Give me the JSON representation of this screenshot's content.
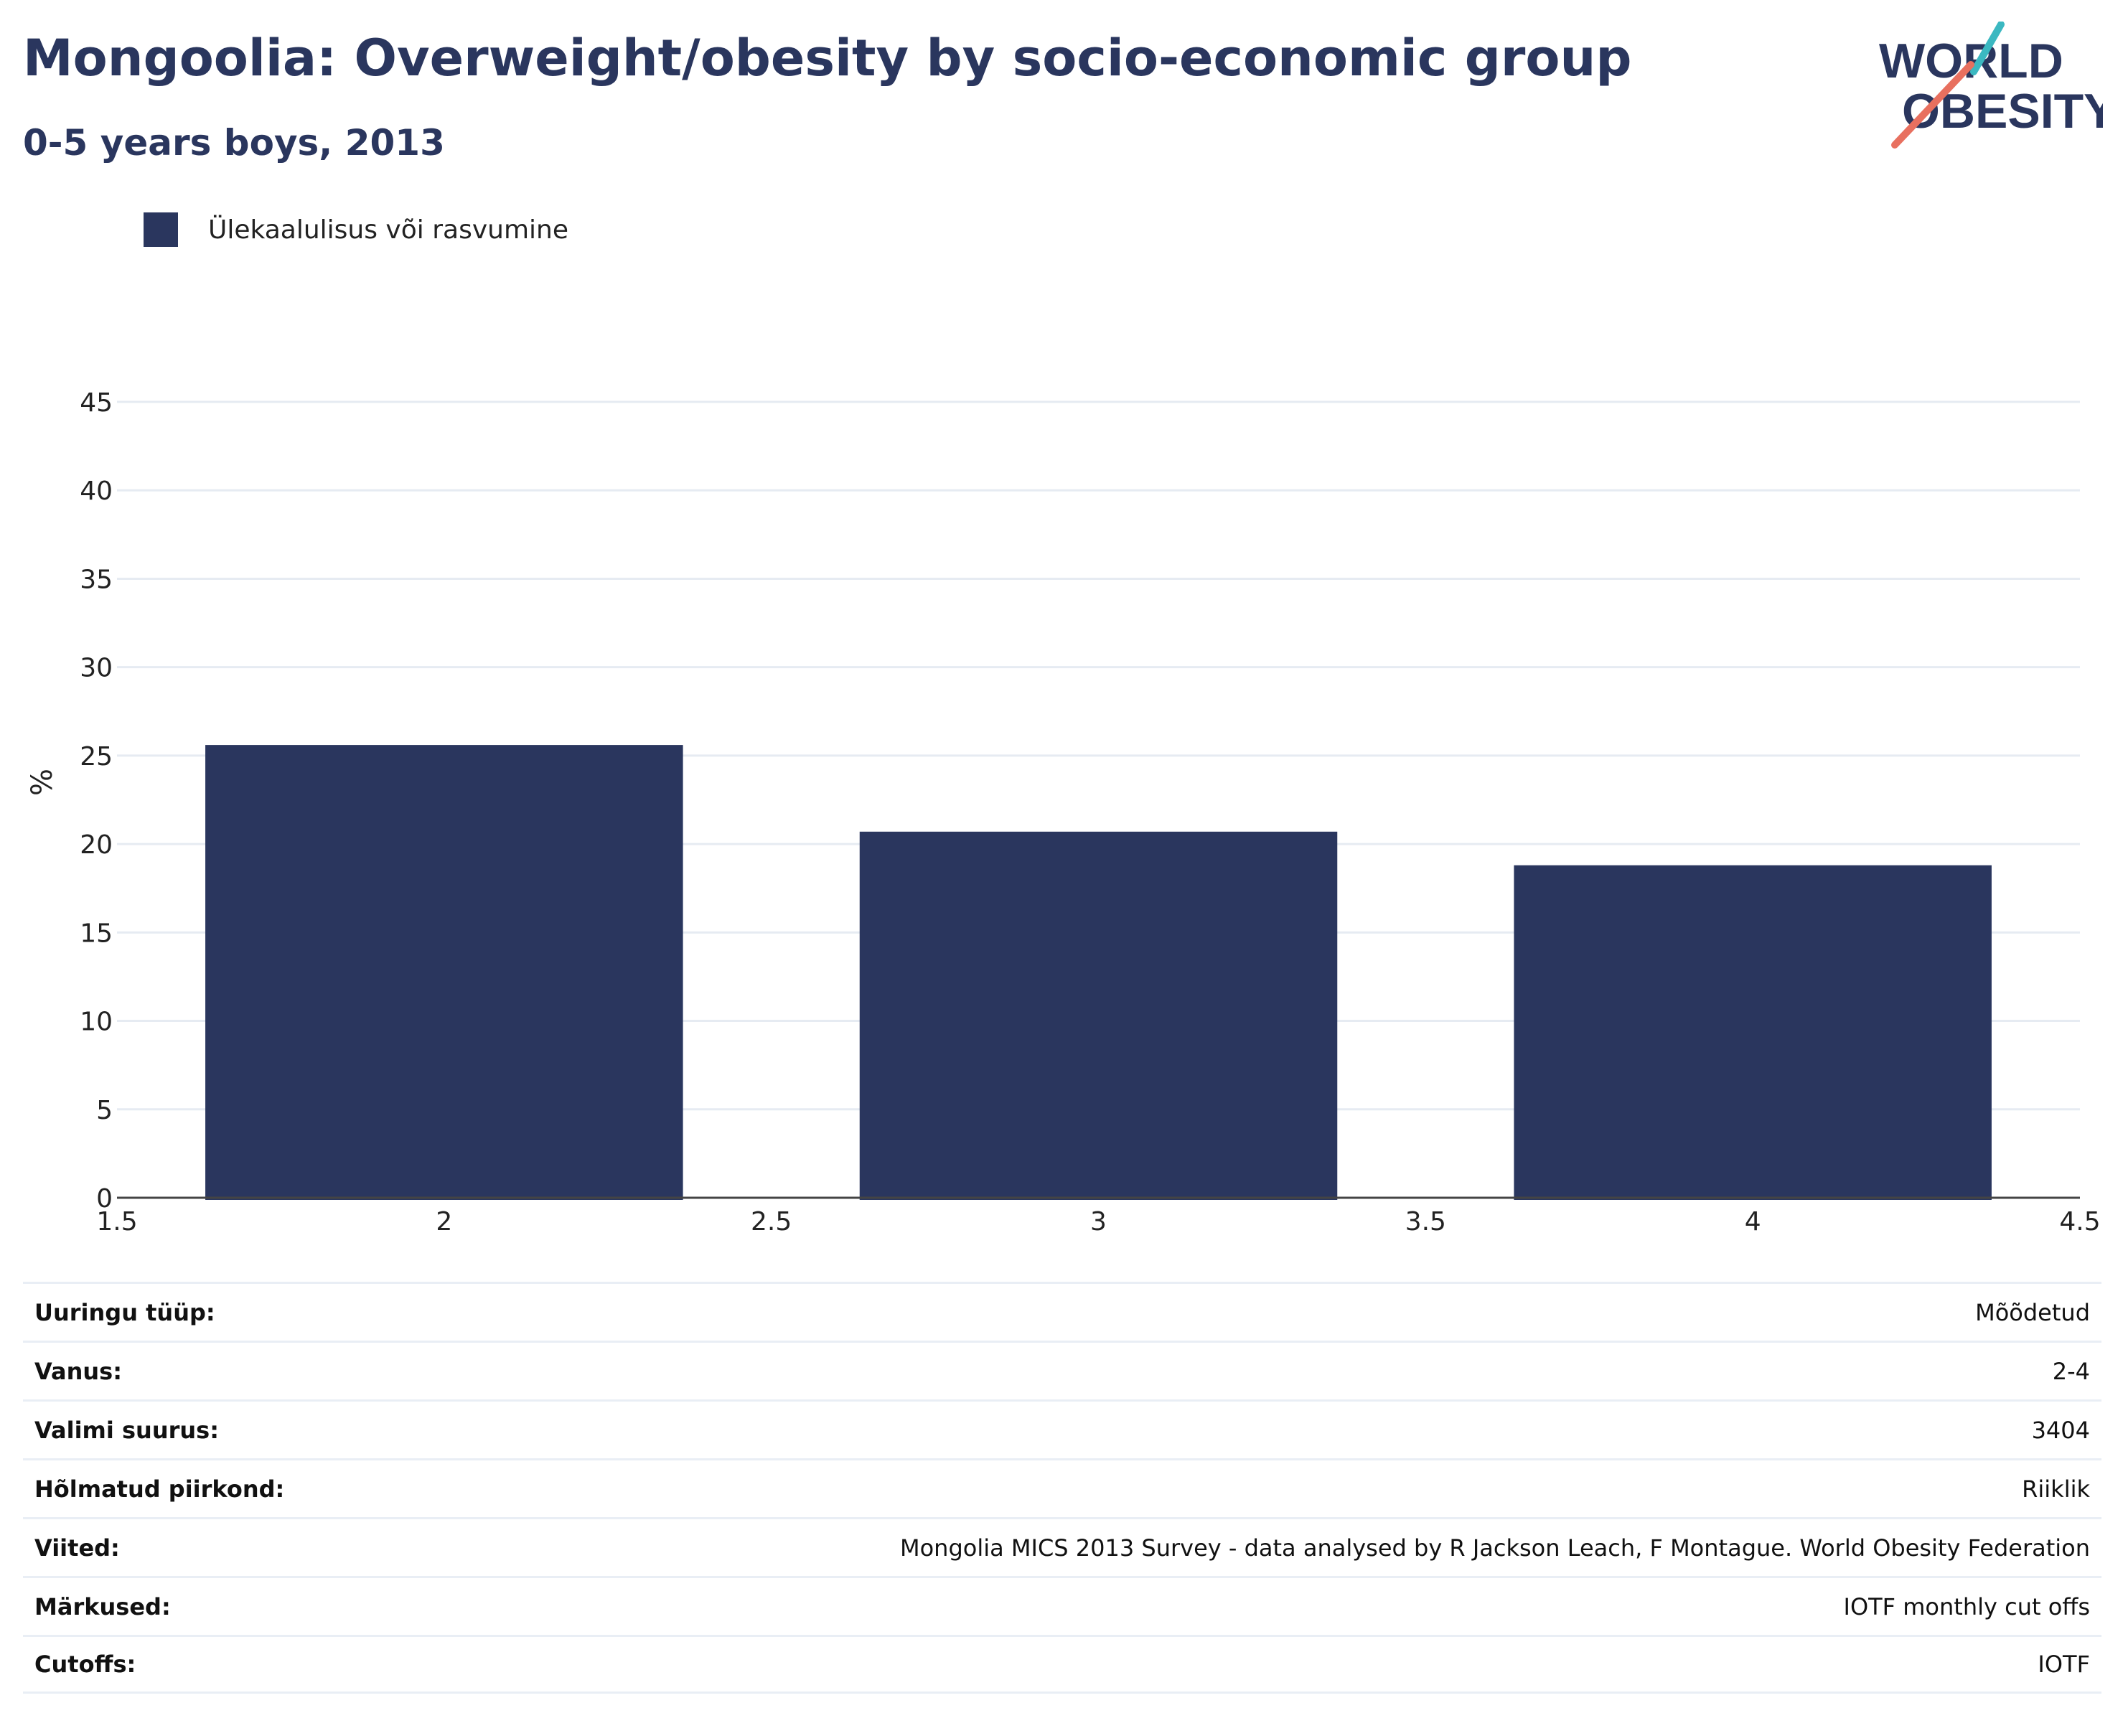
{
  "header": {
    "title": "Mongoolia: Overweight/obesity by socio-economic group",
    "subtitle": "0-5 years boys, 2013"
  },
  "logo": {
    "line1": "WORLD",
    "line2": "OBESITY",
    "accent_teal": "#3bb8c1",
    "accent_coral": "#e8705f"
  },
  "legend": {
    "label": "Ülekaalulisus või rasvumine",
    "color": "#2a365e"
  },
  "chart_data": {
    "type": "bar",
    "x": [
      2,
      3,
      4
    ],
    "values": [
      25.6,
      20.7,
      18.8
    ],
    "series": [
      {
        "name": "Ülekaalulisus või rasvumine",
        "values": [
          25.6,
          20.7,
          18.8
        ]
      }
    ],
    "xlim": [
      1.5,
      4.5
    ],
    "ylim": [
      0,
      45
    ],
    "x_ticks": [
      "1.5",
      "2",
      "2.5",
      "3",
      "3.5",
      "4",
      "4.5"
    ],
    "y_ticks": [
      "0",
      "5",
      "10",
      "15",
      "20",
      "25",
      "30",
      "35",
      "40",
      "45"
    ],
    "ylabel": "%",
    "xlabel": "",
    "grid": true,
    "legend_position": "top-left",
    "bar_color": "#2a365e"
  },
  "info": [
    {
      "label": "Uuringu tüüp:",
      "value": "Mõõdetud"
    },
    {
      "label": "Vanus:",
      "value": "2-4"
    },
    {
      "label": "Valimi suurus:",
      "value": "3404"
    },
    {
      "label": "Hõlmatud piirkond:",
      "value": "Riiklik"
    },
    {
      "label": "Viited:",
      "value": "Mongolia MICS 2013 Survey - data analysed by R Jackson Leach, F Montague. World Obesity Federation"
    },
    {
      "label": "Märkused:",
      "value": "IOTF monthly cut offs"
    },
    {
      "label": "Cutoffs:",
      "value": "IOTF"
    }
  ]
}
